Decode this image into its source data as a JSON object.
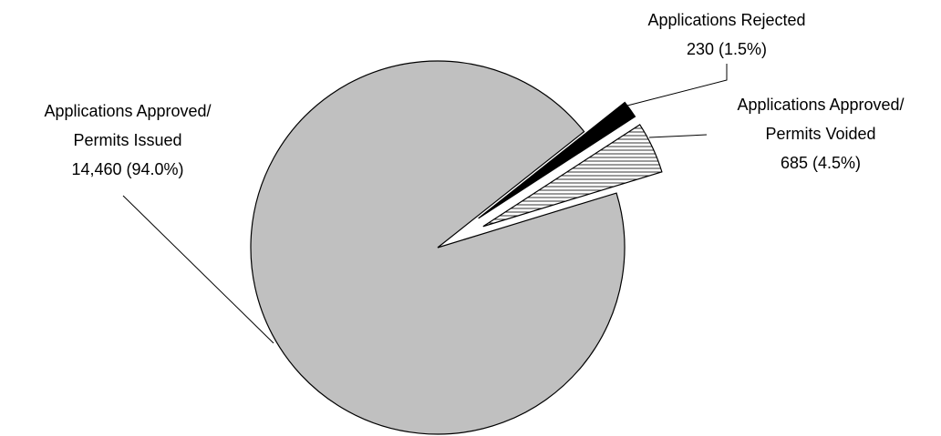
{
  "chart_data": {
    "type": "pie",
    "categories": [
      "Applications Approved/ Permits Issued",
      "Applications Rejected",
      "Applications Approved/ Permits Voided"
    ],
    "values": [
      14460,
      230,
      685
    ],
    "value_labels": [
      "14,460 (94.0%)",
      "230 (1.5%)",
      "685 (4.5%)"
    ],
    "colors": [
      "#c0c0c0",
      "#000000",
      "hatch"
    ]
  }
}
